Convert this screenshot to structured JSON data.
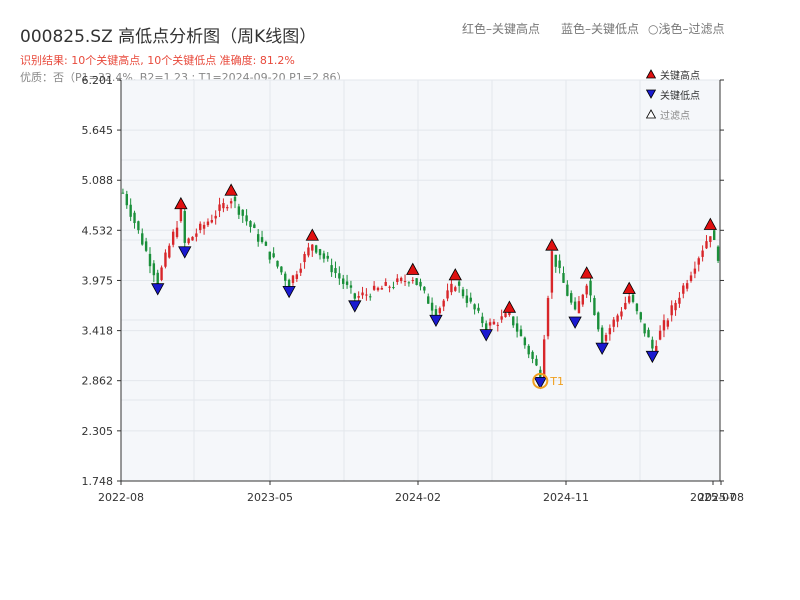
{
  "header": {
    "title": "000825.SZ 高低点分析图（周K线图）",
    "color_hints": [
      "红色–关键高点",
      "蓝色–关键低点",
      "浅色–过滤点"
    ],
    "result_line": "识别结果: 10个关键高点, 10个关键低点   准确度: 81.2%",
    "quality_line": "优质：否（P1=32.4%, B2=1.23 ; T1=2024-09-20 P1=2.86）"
  },
  "legend": {
    "high": "关键高点",
    "low": "关键低点",
    "filtered": "过滤点"
  },
  "colors": {
    "up": "#d8262a",
    "down": "#1a8f3a",
    "high_marker": "#e01010",
    "low_marker": "#1a1ad0",
    "annotation": "#f0a020",
    "plot_bg": "#f5f7fa",
    "grid": "#e3e7ec"
  },
  "chart_data": {
    "type": "candlestick",
    "ylim": [
      1.748,
      6.201
    ],
    "y_ticks": [
      "1.748",
      "2.305",
      "2.862",
      "3.418",
      "3.975",
      "4.532",
      "5.088",
      "5.645",
      "6.201"
    ],
    "x_ticks": [
      "2022-08",
      "2023-05",
      "2024-02",
      "2024-11",
      "2025-07",
      "2025-08"
    ],
    "weeks": 155,
    "annotation": {
      "label": "T1",
      "date": "2024-09-20",
      "value": 2.86
    },
    "key_highs": [
      {
        "week": 15,
        "price": 4.76
      },
      {
        "week": 28,
        "price": 4.91
      },
      {
        "week": 49,
        "price": 4.41
      },
      {
        "week": 75,
        "price": 4.03
      },
      {
        "week": 86,
        "price": 3.97
      },
      {
        "week": 100,
        "price": 3.61
      },
      {
        "week": 111,
        "price": 4.3
      },
      {
        "week": 120,
        "price": 3.99
      },
      {
        "week": 131,
        "price": 3.82
      },
      {
        "week": 152,
        "price": 4.53
      }
    ],
    "key_lows": [
      {
        "week": 9,
        "price": 3.95
      },
      {
        "week": 16,
        "price": 4.36
      },
      {
        "week": 43,
        "price": 3.92
      },
      {
        "week": 60,
        "price": 3.76
      },
      {
        "week": 81,
        "price": 3.6
      },
      {
        "week": 94,
        "price": 3.44
      },
      {
        "week": 108,
        "price": 2.91
      },
      {
        "week": 117,
        "price": 3.58
      },
      {
        "week": 124,
        "price": 3.29
      },
      {
        "week": 137,
        "price": 3.2
      }
    ]
  }
}
